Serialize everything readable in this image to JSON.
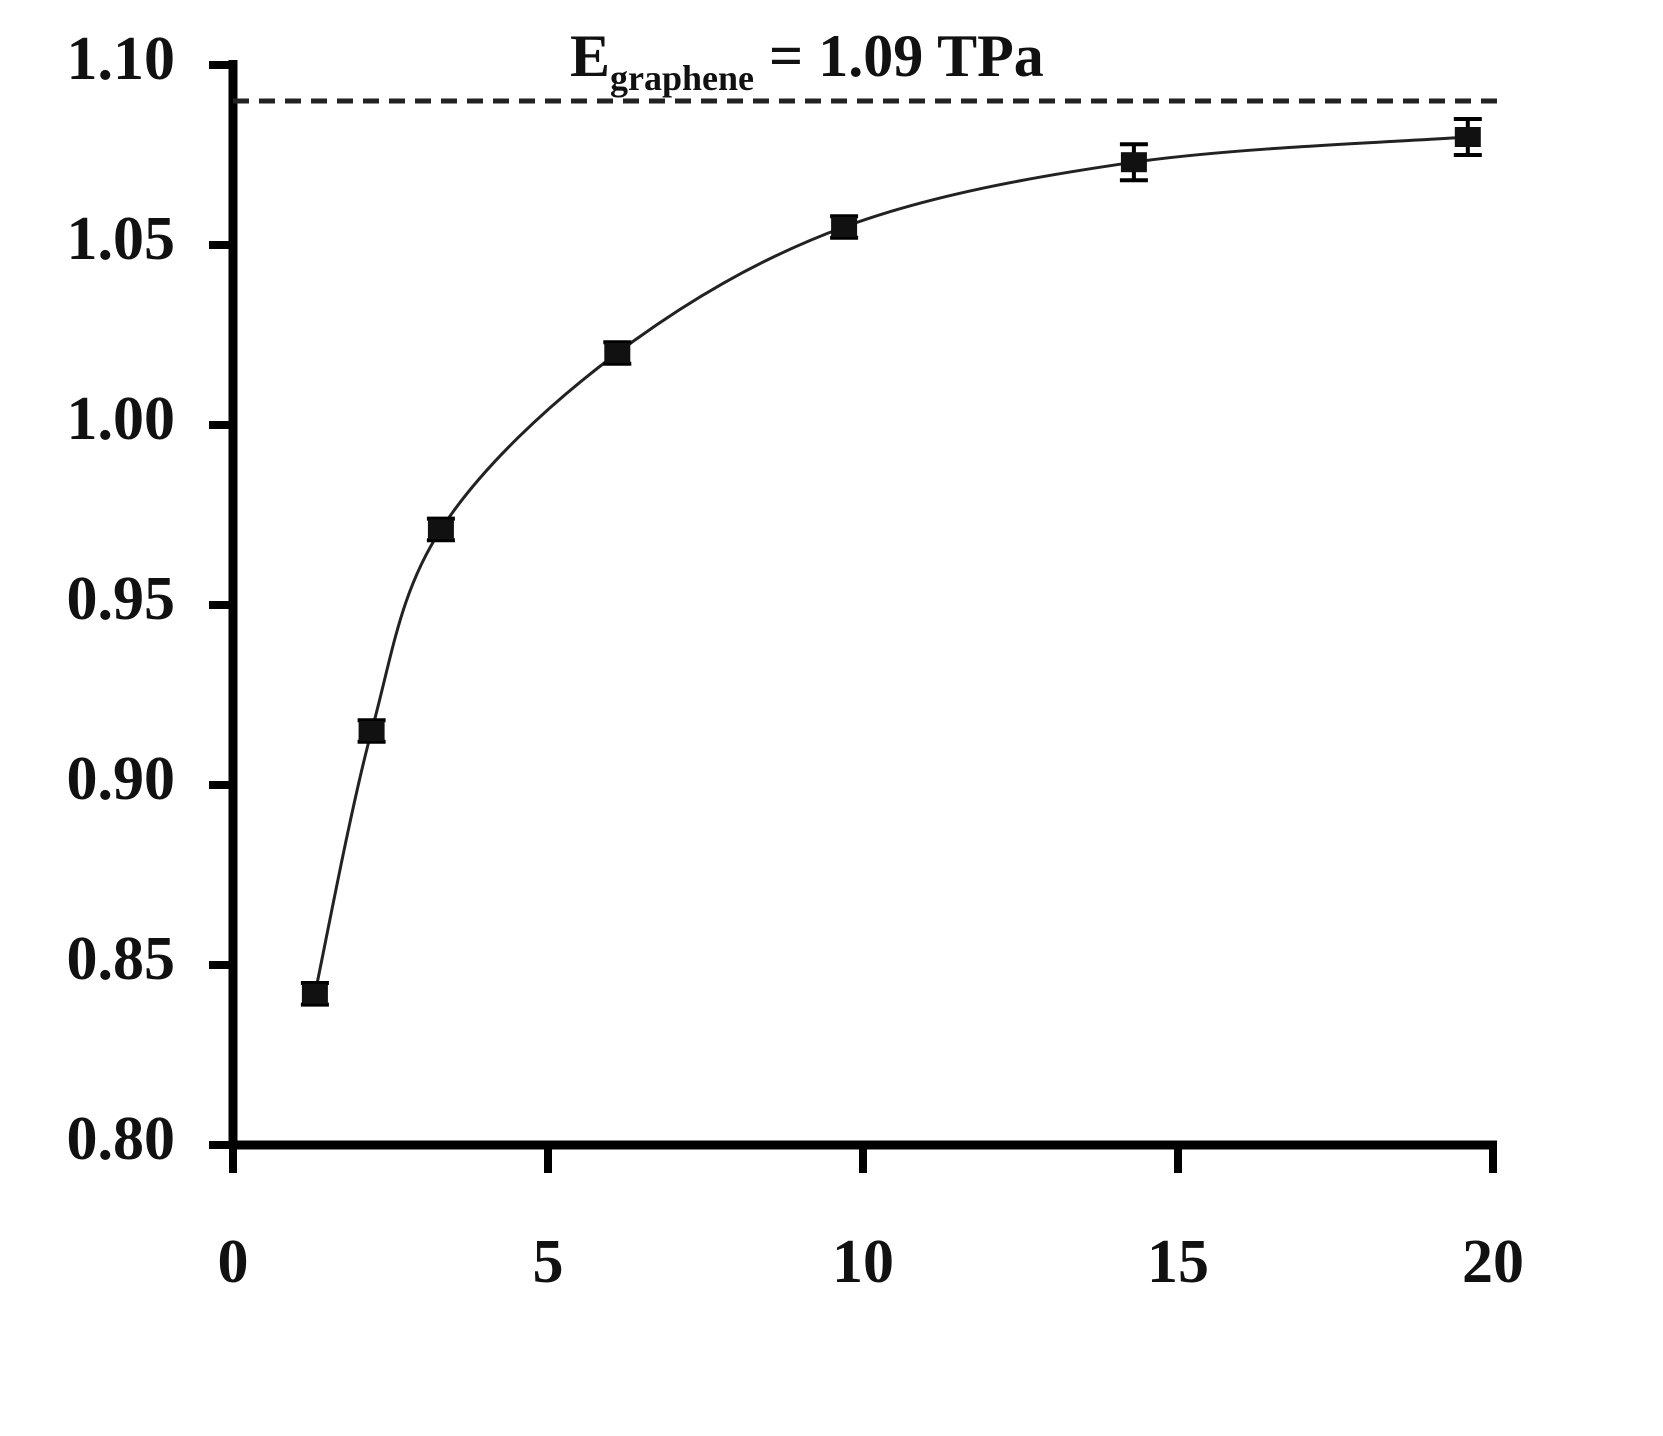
{
  "chart_data": {
    "type": "line",
    "annotation": {
      "text": "E",
      "subscript": "graphene",
      "suffix": " = 1.09 TPa"
    },
    "reference_line": 1.09,
    "x": [
      1.3,
      2.2,
      3.3,
      6.1,
      9.7,
      14.3,
      19.6
    ],
    "series": [
      {
        "color": "#222222",
        "values": [
          0.842,
          0.915,
          0.971,
          1.02,
          1.055,
          1.073,
          1.08
        ],
        "error": [
          0.003,
          0.003,
          0.003,
          0.003,
          0.003,
          0.005,
          0.005
        ]
      }
    ],
    "xlim": [
      0,
      20
    ],
    "xticks": [
      0,
      5,
      10,
      15,
      20
    ],
    "ylim": [
      0.8,
      1.1
    ],
    "yticks": [
      {
        "value": 0.8,
        "label": "0.80"
      },
      0.85,
      {
        "value": 0.9,
        "label": "0.90"
      },
      0.95,
      {
        "value": 1.0,
        "label": "1.00"
      },
      1.05,
      {
        "value": 1.1,
        "label": "1.10"
      }
    ],
    "grid": false
  }
}
